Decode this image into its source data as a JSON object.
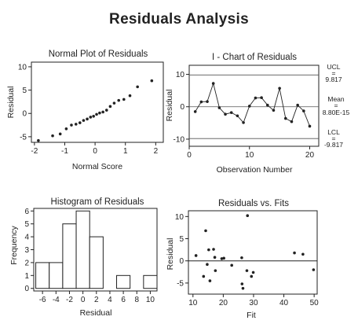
{
  "title": "Residuals Analysis",
  "chart_data": [
    {
      "type": "scatter",
      "title": "Normal Plot of Residuals",
      "xlabel": "Normal Score",
      "ylabel": "Residual",
      "xlim": [
        -2.1,
        2.25
      ],
      "ylim": [
        -6.2,
        11
      ],
      "xticks": [
        -2,
        -1,
        0,
        1,
        2
      ],
      "yticks": [
        -5,
        0,
        5,
        10
      ],
      "points": [
        {
          "x": -1.87,
          "y": -5.8
        },
        {
          "x": -1.4,
          "y": -4.8
        },
        {
          "x": -1.15,
          "y": -4.4
        },
        {
          "x": -0.95,
          "y": -3.3
        },
        {
          "x": -0.78,
          "y": -2.5
        },
        {
          "x": -0.63,
          "y": -2.3
        },
        {
          "x": -0.5,
          "y": -2.0
        },
        {
          "x": -0.38,
          "y": -1.5
        },
        {
          "x": -0.26,
          "y": -1.2
        },
        {
          "x": -0.15,
          "y": -0.8
        },
        {
          "x": -0.05,
          "y": -0.6
        },
        {
          "x": 0.05,
          "y": -0.2
        },
        {
          "x": 0.15,
          "y": 0.1
        },
        {
          "x": 0.26,
          "y": 0.3
        },
        {
          "x": 0.38,
          "y": 0.7
        },
        {
          "x": 0.5,
          "y": 1.5
        },
        {
          "x": 0.63,
          "y": 2.2
        },
        {
          "x": 0.78,
          "y": 2.8
        },
        {
          "x": 0.95,
          "y": 3.0
        },
        {
          "x": 1.15,
          "y": 3.8
        },
        {
          "x": 1.4,
          "y": 5.7
        },
        {
          "x": 1.87,
          "y": 7.0
        }
      ]
    },
    {
      "type": "line",
      "title": "I - Chart of Residuals",
      "xlabel": "Observation Number",
      "ylabel": "Residual",
      "xlim": [
        0,
        21.5
      ],
      "ylim": [
        -12.2,
        12.8
      ],
      "xticks": [
        0,
        10,
        20
      ],
      "yticks": [
        -10,
        0,
        10
      ],
      "x": [
        1,
        2,
        3,
        4,
        5,
        6,
        7,
        8,
        9,
        10,
        11,
        12,
        13,
        14,
        15,
        16,
        17,
        18,
        19,
        20
      ],
      "y": [
        -1.5,
        1.5,
        1.6,
        7.2,
        -0.3,
        -2.3,
        -1.8,
        -2.8,
        -4.9,
        0.2,
        2.7,
        2.8,
        0.5,
        -1.1,
        5.7,
        -3.6,
        -4.6,
        0.5,
        -1.3,
        -6.0
      ],
      "control_lines": {
        "ucl": {
          "label": "UCL",
          "eq": "=",
          "value": "9.817",
          "y": 9.817
        },
        "mean": {
          "label": "Mean",
          "eq": "=",
          "value": "8.80E-15",
          "y": 0
        },
        "lcl": {
          "label": "LCL",
          "eq": "=",
          "value": "-9.817",
          "y": -9.817
        }
      }
    },
    {
      "type": "bar",
      "title": "Histogram of Residuals",
      "xlabel": "Residual",
      "ylabel": "Frequency",
      "xlim": [
        -7.3,
        11
      ],
      "ylim": [
        -0.2,
        6.2
      ],
      "xticks": [
        -6,
        -4,
        -2,
        0,
        2,
        4,
        6,
        8,
        10
      ],
      "yticks": [
        0,
        1,
        2,
        3,
        4,
        5,
        6
      ],
      "bins": [
        {
          "from": -7,
          "to": -5,
          "count": 2
        },
        {
          "from": -5,
          "to": -3,
          "count": 2
        },
        {
          "from": -3,
          "to": -1,
          "count": 5
        },
        {
          "from": -1,
          "to": 1,
          "count": 6
        },
        {
          "from": 1,
          "to": 3,
          "count": 4
        },
        {
          "from": 5,
          "to": 7,
          "count": 1
        },
        {
          "from": 9,
          "to": 11,
          "count": 1
        }
      ]
    },
    {
      "type": "scatter",
      "title": "Residuals vs. Fits",
      "xlabel": "Fit",
      "ylabel": "Residual",
      "xlim": [
        8.5,
        51
      ],
      "ylim": [
        -7.5,
        11.3
      ],
      "xticks": [
        10,
        20,
        30,
        40,
        50
      ],
      "yticks": [
        -5,
        0,
        5,
        10
      ],
      "zero_line": 0,
      "points": [
        {
          "x": 11,
          "y": 1.2
        },
        {
          "x": 13.5,
          "y": -3.5
        },
        {
          "x": 14.2,
          "y": 6.8
        },
        {
          "x": 14.7,
          "y": -0.8
        },
        {
          "x": 15.2,
          "y": 2.5
        },
        {
          "x": 15.6,
          "y": -4.5
        },
        {
          "x": 16.8,
          "y": 2.6
        },
        {
          "x": 17.2,
          "y": 0.8
        },
        {
          "x": 17.4,
          "y": -2.2
        },
        {
          "x": 19.5,
          "y": 0.5
        },
        {
          "x": 20.2,
          "y": 0.6
        },
        {
          "x": 22.8,
          "y": -1.0
        },
        {
          "x": 26.1,
          "y": 0.7
        },
        {
          "x": 26.2,
          "y": -5.2
        },
        {
          "x": 26.5,
          "y": -6.2
        },
        {
          "x": 27.8,
          "y": -2.2
        },
        {
          "x": 28.0,
          "y": 10.2
        },
        {
          "x": 29.3,
          "y": -3.5
        },
        {
          "x": 29.9,
          "y": -2.6
        },
        {
          "x": 43.5,
          "y": 1.8
        },
        {
          "x": 46.3,
          "y": 1.5
        },
        {
          "x": 49.8,
          "y": -2.0
        }
      ]
    }
  ]
}
